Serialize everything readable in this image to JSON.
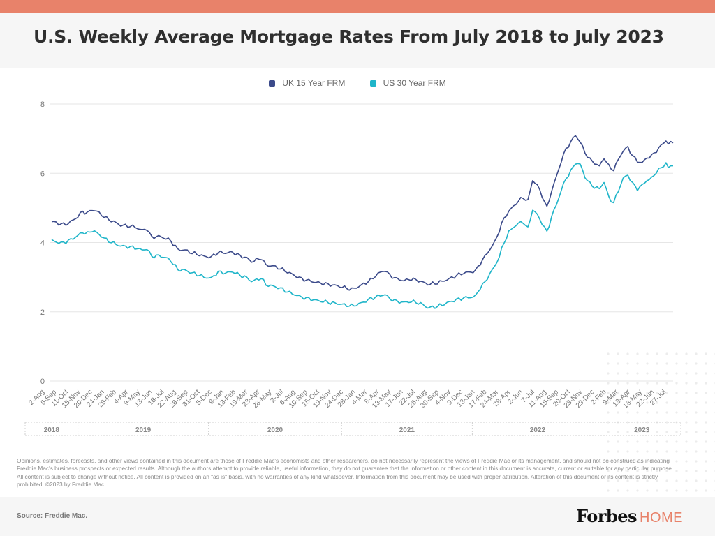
{
  "header": {
    "title": "U.S. Weekly Average Mortgage Rates From July 2018 to July 2023"
  },
  "colors": {
    "accent": "#e8826a",
    "series_navy": "#3b4a8a",
    "series_teal": "#1fb5c9"
  },
  "disclaimer": "Opinions, estimates, forecasts, and other views contained in this document are those of Freddie Mac's economists and other researchers, do not necessarily represent the views of Freddie Mac or its management, and should not be construed as indicating Freddie Mac's business prospects or expected results. Although the authors attempt to provide reliable, useful information, they do not guarantee that the information or other content in this document is accurate, current or suitable for any particular purpose. All content is subject to change without notice. All content is provided on an \"as is\" basis, with no warranties of any kind whatsoever. Information from this document may be used with proper attribution. Alteration of this document or its content is strictly prohibited. ©2023 by Freddie Mac.",
  "footer": {
    "source": "Source: Freddie Mac.",
    "brand_main": "Forbes",
    "brand_sub": "HOME"
  },
  "chart_data": {
    "type": "line",
    "legend_position": "top-center",
    "grid": true,
    "ylim": [
      0,
      8
    ],
    "y_ticks": [
      "0",
      "2",
      "4",
      "6",
      "8"
    ],
    "x_tick_labels": [
      "2-Aug",
      "6-Sep",
      "11-Oct",
      "15-Nov",
      "20-Dec",
      "24-Jan",
      "28-Feb",
      "4-Apr",
      "9-May",
      "13-Jun",
      "18-Jul",
      "22-Aug",
      "26-Sep",
      "31-Oct",
      "5-Dec",
      "9-Jan",
      "13-Feb",
      "19-Mar",
      "23-Apr",
      "28-May",
      "2-Jul",
      "6-Aug",
      "10-Sep",
      "15-Oct",
      "19-Nov",
      "24-Dec",
      "28-Jan",
      "4-Mar",
      "8-Apr",
      "13-May",
      "17-Jun",
      "22-Jul",
      "26-Aug",
      "30-Sep",
      "4-Nov",
      "9-Dec",
      "13-Jan",
      "17-Feb",
      "24-Mar",
      "28-Apr",
      "2-Jun",
      "7-Jul",
      "11-Aug",
      "15-Sep",
      "20-Oct",
      "23-Nov",
      "29-Dec",
      "2-Feb",
      "9-Mar",
      "13-Apr",
      "18-May",
      "22-Jun",
      "27-Jul"
    ],
    "year_groups": [
      {
        "label": "2018",
        "from": 0,
        "to": 21
      },
      {
        "label": "2019",
        "from": 21,
        "to": 73
      },
      {
        "label": "2020",
        "from": 73,
        "to": 126
      },
      {
        "label": "2021",
        "from": 126,
        "to": 178
      },
      {
        "label": "2022",
        "from": 178,
        "to": 230
      },
      {
        "label": "2023",
        "from": 230,
        "to": 261
      }
    ],
    "series": [
      {
        "name": "UK 15 Year FRM",
        "color": "#3b4a8a",
        "keyframes": [
          [
            0,
            4.6
          ],
          [
            2,
            4.58
          ],
          [
            4,
            4.52
          ],
          [
            7,
            4.55
          ],
          [
            9,
            4.65
          ],
          [
            11,
            4.75
          ],
          [
            13,
            4.9
          ],
          [
            15,
            4.85
          ],
          [
            17,
            4.95
          ],
          [
            19,
            4.9
          ],
          [
            21,
            4.8
          ],
          [
            23,
            4.7
          ],
          [
            26,
            4.6
          ],
          [
            29,
            4.5
          ],
          [
            32,
            4.48
          ],
          [
            35,
            4.45
          ],
          [
            38,
            4.35
          ],
          [
            40,
            4.4
          ],
          [
            42,
            4.15
          ],
          [
            45,
            4.18
          ],
          [
            48,
            4.12
          ],
          [
            50,
            4.05
          ],
          [
            53,
            3.8
          ],
          [
            56,
            3.78
          ],
          [
            59,
            3.7
          ],
          [
            62,
            3.65
          ],
          [
            64,
            3.6
          ],
          [
            67,
            3.58
          ],
          [
            70,
            3.72
          ],
          [
            73,
            3.7
          ],
          [
            76,
            3.72
          ],
          [
            79,
            3.62
          ],
          [
            82,
            3.55
          ],
          [
            84,
            3.45
          ],
          [
            86,
            3.5
          ],
          [
            88,
            3.55
          ],
          [
            90,
            3.35
          ],
          [
            93,
            3.32
          ],
          [
            96,
            3.25
          ],
          [
            99,
            3.15
          ],
          [
            102,
            3.05
          ],
          [
            105,
            2.95
          ],
          [
            108,
            2.9
          ],
          [
            111,
            2.85
          ],
          [
            114,
            2.82
          ],
          [
            117,
            2.78
          ],
          [
            120,
            2.75
          ],
          [
            123,
            2.7
          ],
          [
            126,
            2.65
          ],
          [
            128,
            2.7
          ],
          [
            131,
            2.8
          ],
          [
            134,
            2.92
          ],
          [
            137,
            3.1
          ],
          [
            140,
            3.2
          ],
          [
            142,
            3.05
          ],
          [
            145,
            2.95
          ],
          [
            148,
            2.9
          ],
          [
            151,
            2.95
          ],
          [
            154,
            2.9
          ],
          [
            156,
            2.85
          ],
          [
            158,
            2.8
          ],
          [
            161,
            2.82
          ],
          [
            164,
            2.88
          ],
          [
            167,
            2.95
          ],
          [
            170,
            3.05
          ],
          [
            173,
            3.12
          ],
          [
            176,
            3.15
          ],
          [
            178,
            3.18
          ],
          [
            180,
            3.4
          ],
          [
            182,
            3.6
          ],
          [
            184,
            3.8
          ],
          [
            186,
            4.0
          ],
          [
            188,
            4.35
          ],
          [
            190,
            4.7
          ],
          [
            192,
            4.9
          ],
          [
            194,
            5.05
          ],
          [
            196,
            5.2
          ],
          [
            198,
            5.3
          ],
          [
            200,
            5.2
          ],
          [
            202,
            5.8
          ],
          [
            204,
            5.65
          ],
          [
            206,
            5.35
          ],
          [
            208,
            5.0
          ],
          [
            210,
            5.5
          ],
          [
            212,
            5.9
          ],
          [
            214,
            6.35
          ],
          [
            216,
            6.7
          ],
          [
            218,
            6.9
          ],
          [
            220,
            7.1
          ],
          [
            222,
            6.9
          ],
          [
            224,
            6.6
          ],
          [
            226,
            6.4
          ],
          [
            228,
            6.3
          ],
          [
            230,
            6.2
          ],
          [
            232,
            6.45
          ],
          [
            234,
            6.2
          ],
          [
            236,
            6.1
          ],
          [
            238,
            6.4
          ],
          [
            240,
            6.65
          ],
          [
            242,
            6.75
          ],
          [
            244,
            6.5
          ],
          [
            246,
            6.35
          ],
          [
            248,
            6.3
          ],
          [
            250,
            6.45
          ],
          [
            252,
            6.5
          ],
          [
            254,
            6.65
          ],
          [
            256,
            6.8
          ],
          [
            258,
            6.95
          ],
          [
            259,
            6.85
          ],
          [
            261,
            6.9
          ]
        ]
      },
      {
        "name": "US 30 Year FRM",
        "color": "#1fb5c9",
        "keyframes": [
          [
            0,
            4.06
          ],
          [
            2,
            4.02
          ],
          [
            4,
            3.98
          ],
          [
            7,
            4.05
          ],
          [
            9,
            4.12
          ],
          [
            11,
            4.2
          ],
          [
            13,
            4.3
          ],
          [
            15,
            4.26
          ],
          [
            17,
            4.35
          ],
          [
            19,
            4.28
          ],
          [
            21,
            4.18
          ],
          [
            23,
            4.08
          ],
          [
            26,
            3.98
          ],
          [
            29,
            3.9
          ],
          [
            32,
            3.88
          ],
          [
            35,
            3.85
          ],
          [
            38,
            3.78
          ],
          [
            40,
            3.82
          ],
          [
            42,
            3.6
          ],
          [
            45,
            3.62
          ],
          [
            48,
            3.56
          ],
          [
            50,
            3.48
          ],
          [
            53,
            3.22
          ],
          [
            56,
            3.2
          ],
          [
            59,
            3.12
          ],
          [
            62,
            3.06
          ],
          [
            64,
            3.0
          ],
          [
            67,
            2.97
          ],
          [
            70,
            3.15
          ],
          [
            73,
            3.12
          ],
          [
            76,
            3.16
          ],
          [
            79,
            3.06
          ],
          [
            82,
            2.98
          ],
          [
            84,
            2.88
          ],
          [
            86,
            2.92
          ],
          [
            88,
            2.98
          ],
          [
            90,
            2.78
          ],
          [
            93,
            2.74
          ],
          [
            96,
            2.68
          ],
          [
            99,
            2.58
          ],
          [
            102,
            2.5
          ],
          [
            105,
            2.42
          ],
          [
            108,
            2.38
          ],
          [
            111,
            2.33
          ],
          [
            114,
            2.3
          ],
          [
            117,
            2.26
          ],
          [
            120,
            2.24
          ],
          [
            123,
            2.2
          ],
          [
            126,
            2.17
          ],
          [
            128,
            2.2
          ],
          [
            131,
            2.28
          ],
          [
            134,
            2.38
          ],
          [
            137,
            2.45
          ],
          [
            140,
            2.5
          ],
          [
            142,
            2.38
          ],
          [
            145,
            2.3
          ],
          [
            148,
            2.27
          ],
          [
            151,
            2.3
          ],
          [
            154,
            2.26
          ],
          [
            156,
            2.2
          ],
          [
            158,
            2.12
          ],
          [
            161,
            2.14
          ],
          [
            164,
            2.2
          ],
          [
            167,
            2.28
          ],
          [
            170,
            2.35
          ],
          [
            173,
            2.4
          ],
          [
            176,
            2.42
          ],
          [
            178,
            2.45
          ],
          [
            180,
            2.7
          ],
          [
            182,
            2.85
          ],
          [
            184,
            3.1
          ],
          [
            186,
            3.3
          ],
          [
            188,
            3.6
          ],
          [
            190,
            4.0
          ],
          [
            192,
            4.3
          ],
          [
            194,
            4.45
          ],
          [
            196,
            4.55
          ],
          [
            198,
            4.6
          ],
          [
            200,
            4.4
          ],
          [
            202,
            4.95
          ],
          [
            204,
            4.8
          ],
          [
            206,
            4.55
          ],
          [
            208,
            4.3
          ],
          [
            210,
            4.75
          ],
          [
            212,
            5.1
          ],
          [
            214,
            5.5
          ],
          [
            216,
            5.85
          ],
          [
            218,
            6.05
          ],
          [
            220,
            6.3
          ],
          [
            222,
            6.25
          ],
          [
            224,
            5.9
          ],
          [
            226,
            5.7
          ],
          [
            228,
            5.6
          ],
          [
            230,
            5.55
          ],
          [
            232,
            5.75
          ],
          [
            234,
            5.3
          ],
          [
            236,
            5.15
          ],
          [
            238,
            5.5
          ],
          [
            240,
            5.85
          ],
          [
            242,
            5.95
          ],
          [
            244,
            5.7
          ],
          [
            246,
            5.55
          ],
          [
            248,
            5.65
          ],
          [
            250,
            5.8
          ],
          [
            252,
            5.85
          ],
          [
            254,
            6.05
          ],
          [
            256,
            6.15
          ],
          [
            258,
            6.3
          ],
          [
            259,
            6.15
          ],
          [
            261,
            6.25
          ]
        ]
      }
    ]
  }
}
